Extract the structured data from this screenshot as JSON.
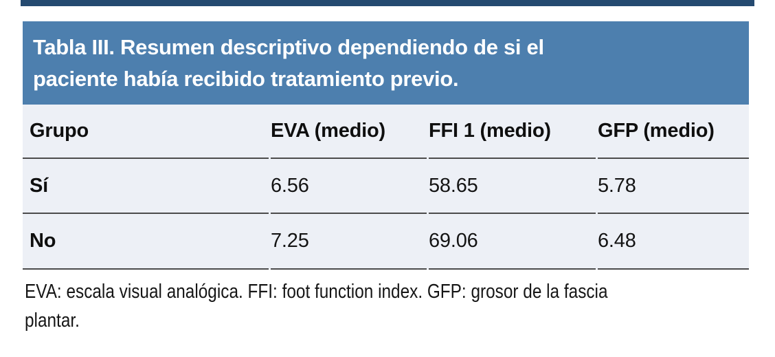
{
  "figure": {
    "colors": {
      "accent_bar": "#254a70",
      "title_band": "#4d7fae",
      "table_body_bg": "#edf0f6",
      "rule": "#4b4b4b",
      "title_text": "#ffffff",
      "body_text": "#141414"
    },
    "title_lines": [
      "Tabla III. Resumen descriptivo dependiendo de si el",
      "paciente había recibido tratamiento previo."
    ],
    "chart_data": {
      "type": "table",
      "title": "Tabla III. Resumen descriptivo dependiendo de si el paciente había recibido tratamiento previo.",
      "columns": [
        "Grupo",
        "EVA (medio)",
        "FFI 1 (medio)",
        "GFP (medio)"
      ],
      "rows": [
        [
          "Sí",
          6.56,
          58.65,
          5.78
        ],
        [
          "No",
          7.25,
          69.06,
          6.48
        ]
      ]
    },
    "table": {
      "columns": [
        "Grupo",
        "EVA (medio)",
        "FFI 1 (medio)",
        "GFP (medio)"
      ],
      "rows": [
        {
          "grupo": "Sí",
          "eva": "6.56",
          "ffi": "58.65",
          "gfp": "5.78"
        },
        {
          "grupo": "No",
          "eva": "7.25",
          "ffi": "69.06",
          "gfp": "6.48"
        }
      ]
    },
    "footnote_lines": [
      "EVA: escala visual analógica. FFI: foot function index. GFP: grosor de la fascia",
      "plantar."
    ]
  }
}
